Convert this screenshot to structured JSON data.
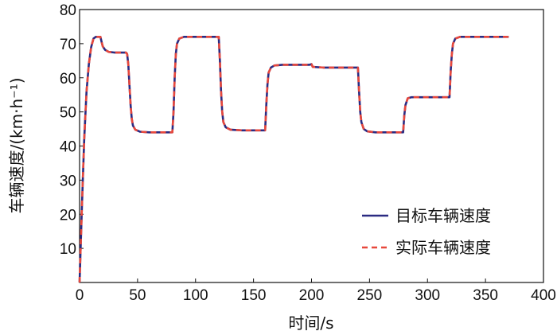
{
  "chart_data": {
    "type": "line",
    "xlabel": "时间/s",
    "ylabel": "车辆速度/(km·h⁻¹)",
    "xlim": [
      0,
      400
    ],
    "ylim": [
      0,
      80
    ],
    "x_ticks": [
      "0",
      "50",
      "100",
      "150",
      "200",
      "250",
      "300",
      "350",
      "400"
    ],
    "y_ticks": [
      "10",
      "20",
      "30",
      "40",
      "50",
      "60",
      "70",
      "80"
    ],
    "grid": false,
    "legend_position": "bottom-right",
    "series": [
      {
        "name": "目标车辆速度",
        "color": "#2b2b82",
        "dash": "solid",
        "points": [
          [
            0,
            0
          ],
          [
            2,
            22
          ],
          [
            4,
            42
          ],
          [
            6,
            56
          ],
          [
            8,
            64
          ],
          [
            10,
            69
          ],
          [
            12,
            71.5
          ],
          [
            14,
            72
          ],
          [
            16,
            72
          ],
          [
            18,
            72
          ],
          [
            19,
            70.5
          ],
          [
            20,
            69.2
          ],
          [
            22,
            68.2
          ],
          [
            25,
            67.6
          ],
          [
            30,
            67.4
          ],
          [
            40,
            67.4
          ],
          [
            41,
            67
          ],
          [
            42,
            64
          ],
          [
            43,
            58
          ],
          [
            44,
            52
          ],
          [
            45,
            48
          ],
          [
            46,
            46
          ],
          [
            48,
            44.8
          ],
          [
            52,
            44.2
          ],
          [
            60,
            44
          ],
          [
            80,
            44
          ],
          [
            81,
            50
          ],
          [
            82,
            60
          ],
          [
            83,
            67
          ],
          [
            84,
            70
          ],
          [
            86,
            71.5
          ],
          [
            90,
            72
          ],
          [
            100,
            72
          ],
          [
            120,
            72
          ],
          [
            121,
            65
          ],
          [
            122,
            56
          ],
          [
            123,
            50
          ],
          [
            124,
            47
          ],
          [
            126,
            45.5
          ],
          [
            130,
            44.8
          ],
          [
            140,
            44.6
          ],
          [
            160,
            44.6
          ],
          [
            161,
            52
          ],
          [
            162,
            58
          ],
          [
            163,
            61.5
          ],
          [
            165,
            63
          ],
          [
            168,
            63.6
          ],
          [
            175,
            63.8
          ],
          [
            198,
            63.8
          ],
          [
            200,
            64
          ],
          [
            201,
            63.2
          ],
          [
            210,
            63
          ],
          [
            240,
            63
          ],
          [
            241,
            56
          ],
          [
            242,
            50
          ],
          [
            243,
            47
          ],
          [
            245,
            45
          ],
          [
            248,
            44.3
          ],
          [
            255,
            44
          ],
          [
            279,
            44
          ],
          [
            280,
            49
          ],
          [
            281,
            52
          ],
          [
            283,
            54
          ],
          [
            286,
            54.3
          ],
          [
            295,
            54.3
          ],
          [
            319,
            54.3
          ],
          [
            320,
            62
          ],
          [
            321,
            67
          ],
          [
            322,
            70
          ],
          [
            324,
            71.5
          ],
          [
            328,
            72
          ],
          [
            340,
            72
          ],
          [
            370,
            72
          ]
        ]
      },
      {
        "name": "实际车辆速度",
        "color": "#e8483c",
        "dash": "dashed",
        "points": [
          [
            0,
            0
          ],
          [
            2,
            22
          ],
          [
            4,
            42
          ],
          [
            6,
            56
          ],
          [
            8,
            64
          ],
          [
            10,
            69
          ],
          [
            12,
            71.5
          ],
          [
            14,
            72
          ],
          [
            16,
            72
          ],
          [
            18,
            72
          ],
          [
            19,
            70.5
          ],
          [
            20,
            69.2
          ],
          [
            22,
            68.2
          ],
          [
            25,
            67.6
          ],
          [
            30,
            67.4
          ],
          [
            40,
            67.4
          ],
          [
            41,
            67
          ],
          [
            42,
            64
          ],
          [
            43,
            58
          ],
          [
            44,
            52
          ],
          [
            45,
            48
          ],
          [
            46,
            46
          ],
          [
            48,
            44.8
          ],
          [
            52,
            44.2
          ],
          [
            60,
            44
          ],
          [
            80,
            44
          ],
          [
            81,
            50
          ],
          [
            82,
            60
          ],
          [
            83,
            67
          ],
          [
            84,
            70
          ],
          [
            86,
            71.5
          ],
          [
            90,
            72
          ],
          [
            100,
            72
          ],
          [
            120,
            72
          ],
          [
            121,
            65
          ],
          [
            122,
            56
          ],
          [
            123,
            50
          ],
          [
            124,
            47
          ],
          [
            126,
            45.5
          ],
          [
            130,
            44.8
          ],
          [
            140,
            44.6
          ],
          [
            160,
            44.6
          ],
          [
            161,
            52
          ],
          [
            162,
            58
          ],
          [
            163,
            61.5
          ],
          [
            165,
            63
          ],
          [
            168,
            63.6
          ],
          [
            175,
            63.8
          ],
          [
            198,
            63.8
          ],
          [
            200,
            64
          ],
          [
            201,
            63.2
          ],
          [
            210,
            63
          ],
          [
            240,
            63
          ],
          [
            241,
            56
          ],
          [
            242,
            50
          ],
          [
            243,
            47
          ],
          [
            245,
            45
          ],
          [
            248,
            44.3
          ],
          [
            255,
            44
          ],
          [
            279,
            44
          ],
          [
            280,
            49
          ],
          [
            281,
            52
          ],
          [
            283,
            54
          ],
          [
            286,
            54.3
          ],
          [
            295,
            54.3
          ],
          [
            319,
            54.3
          ],
          [
            320,
            62
          ],
          [
            321,
            67
          ],
          [
            322,
            70
          ],
          [
            324,
            71.5
          ],
          [
            328,
            72
          ],
          [
            340,
            72
          ],
          [
            370,
            72
          ]
        ]
      }
    ]
  }
}
